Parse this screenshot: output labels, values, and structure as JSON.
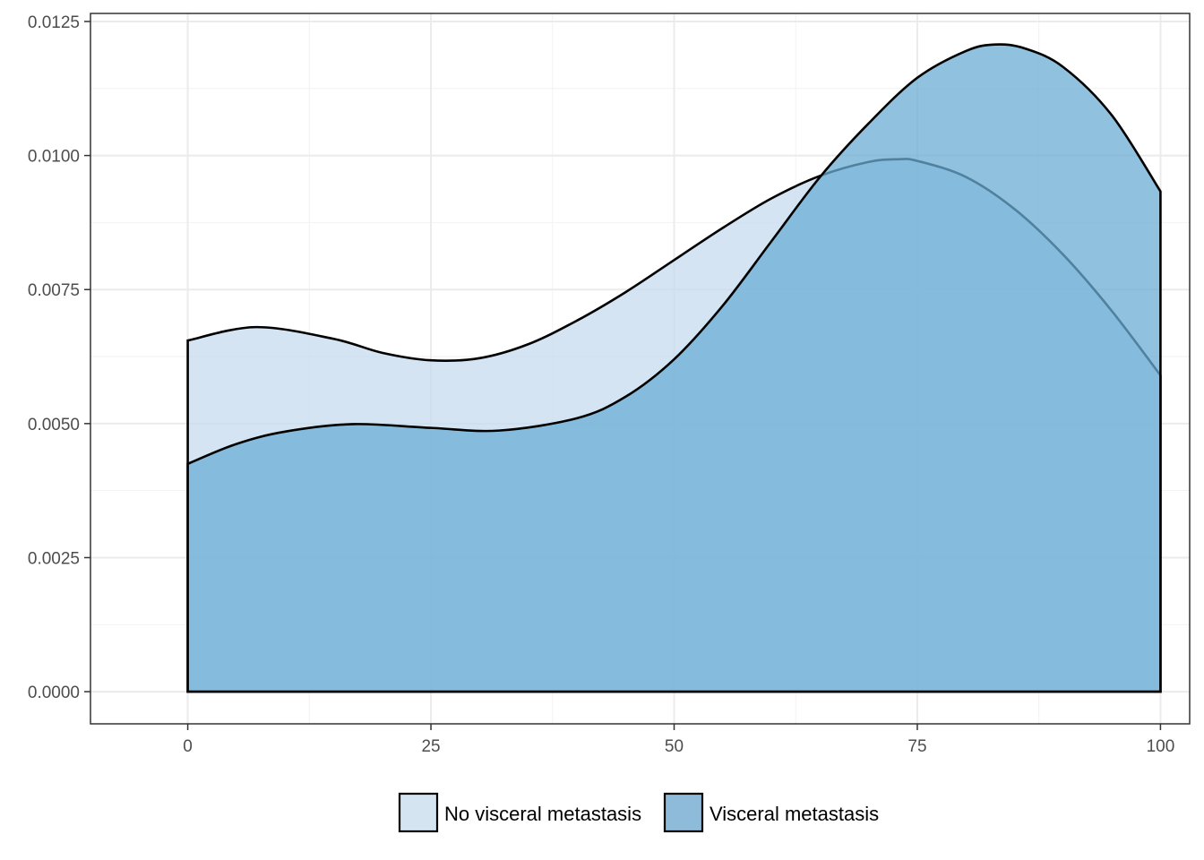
{
  "chart_data": {
    "type": "area",
    "title": "",
    "xlabel": "",
    "ylabel": "",
    "xlim": [
      -10,
      103
    ],
    "ylim": [
      -0.0006,
      0.01265
    ],
    "x_ticks": [
      0,
      25,
      50,
      75,
      100
    ],
    "x_tick_labels": [
      "0",
      "25",
      "50",
      "75",
      "100"
    ],
    "y_ticks": [
      0,
      0.0025,
      0.005,
      0.0075,
      0.01,
      0.0125
    ],
    "y_tick_labels": [
      "0.0000",
      "0.0025",
      "0.0050",
      "0.0075",
      "0.0100",
      "0.0125"
    ],
    "grid": true,
    "legend_position": "bottom",
    "series": [
      {
        "name": "No visceral metastasis",
        "fill": "#c6dbef",
        "x": [
          0,
          7,
          15,
          20,
          25,
          30,
          35,
          40,
          45,
          50,
          55,
          60,
          65,
          70,
          73,
          75,
          80,
          85,
          90,
          95,
          100
        ],
        "y": [
          0.00655,
          0.0068,
          0.00658,
          0.00632,
          0.00618,
          0.00622,
          0.00648,
          0.00692,
          0.00745,
          0.00805,
          0.00865,
          0.0092,
          0.00962,
          0.00988,
          0.00993,
          0.0099,
          0.0096,
          0.009,
          0.00815,
          0.0071,
          0.0059
        ]
      },
      {
        "name": "Visceral metastasis",
        "fill": "#6baed6",
        "x": [
          0,
          5,
          10,
          17,
          25,
          32,
          40,
          45,
          50,
          55,
          60,
          65,
          70,
          75,
          80,
          83,
          86,
          90,
          95,
          100
        ],
        "y": [
          0.00425,
          0.00462,
          0.00485,
          0.00499,
          0.00492,
          0.00487,
          0.0051,
          0.0055,
          0.0062,
          0.0072,
          0.0084,
          0.0096,
          0.0106,
          0.01145,
          0.01195,
          0.01207,
          0.012,
          0.01165,
          0.01075,
          0.00933
        ]
      }
    ]
  }
}
